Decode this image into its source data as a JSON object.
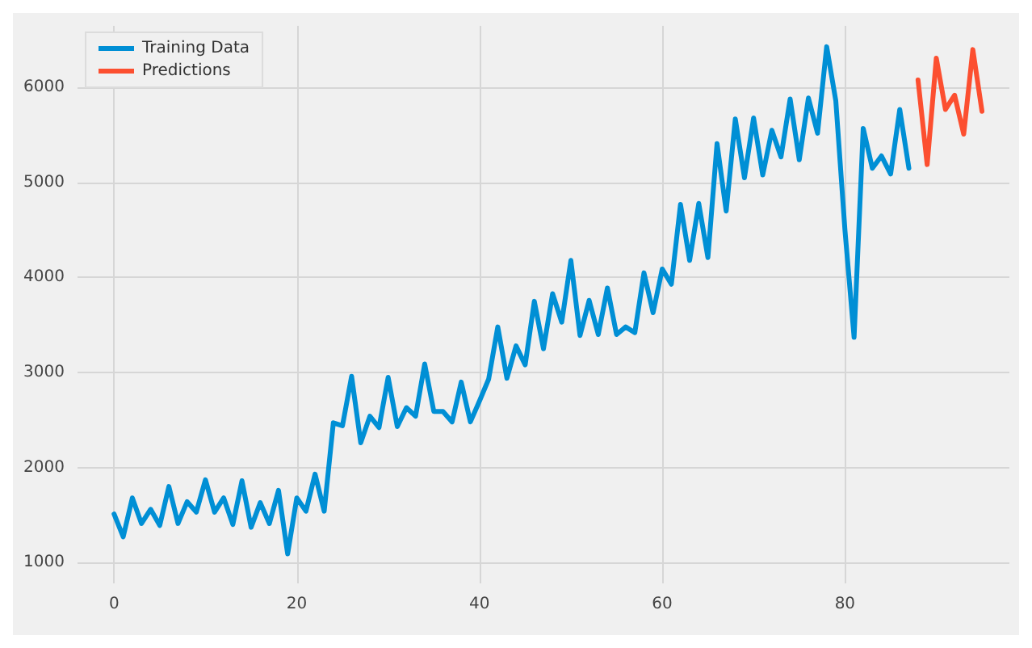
{
  "chart_data": {
    "type": "line",
    "series": [
      {
        "name": "Training Data",
        "color": "#008fd5",
        "x": [
          0,
          1,
          2,
          3,
          4,
          5,
          6,
          7,
          8,
          9,
          10,
          11,
          12,
          13,
          14,
          15,
          16,
          17,
          18,
          19,
          20,
          21,
          22,
          23,
          24,
          25,
          26,
          27,
          28,
          29,
          30,
          31,
          32,
          33,
          34,
          35,
          36,
          37,
          38,
          39,
          40,
          41,
          42,
          43,
          44,
          45,
          46,
          47,
          48,
          49,
          50,
          51,
          52,
          53,
          54,
          55,
          56,
          57,
          58,
          59,
          60,
          61,
          62,
          63,
          64,
          65,
          66,
          67,
          68,
          69,
          70,
          71,
          72,
          73,
          74,
          75,
          76,
          77,
          78,
          79,
          80,
          81,
          82,
          83,
          84,
          85,
          86,
          87
        ],
        "values": [
          1510,
          1270,
          1680,
          1410,
          1560,
          1390,
          1800,
          1410,
          1640,
          1530,
          1870,
          1530,
          1680,
          1400,
          1860,
          1370,
          1630,
          1410,
          1760,
          1090,
          1680,
          1540,
          1930,
          1540,
          2470,
          2440,
          2960,
          2260,
          2540,
          2420,
          2950,
          2430,
          2630,
          2540,
          3090,
          2590,
          2590,
          2480,
          2900,
          2480,
          2700,
          2930,
          3480,
          2940,
          3280,
          3080,
          3750,
          3250,
          3830,
          3530,
          4180,
          3390,
          3760,
          3400,
          3890,
          3400,
          3480,
          3420,
          4050,
          3630,
          4090,
          3930,
          4770,
          4180,
          4780,
          4210,
          5410,
          4700,
          5670,
          5050,
          5680,
          5080,
          5550,
          5270,
          5880,
          5240,
          5890,
          5520,
          6430,
          5860,
          4500,
          3370,
          5570,
          5150,
          5280,
          5090,
          5770,
          5150
        ]
      },
      {
        "name": "Predictions",
        "color": "#fc4f30",
        "x": [
          88,
          89,
          90,
          91,
          92,
          93,
          94,
          95
        ],
        "values": [
          6080,
          5190,
          6310,
          5770,
          5920,
          5510,
          6400,
          5750
        ]
      }
    ],
    "xlim": [
      -4,
      98
    ],
    "ylim": [
      780,
      6650
    ],
    "xticks": [
      0,
      20,
      40,
      60,
      80
    ],
    "yticks": [
      1000,
      2000,
      3000,
      4000,
      5000,
      6000
    ],
    "grid": true,
    "legend": "top left",
    "marker": "none",
    "line_style": "solid"
  }
}
